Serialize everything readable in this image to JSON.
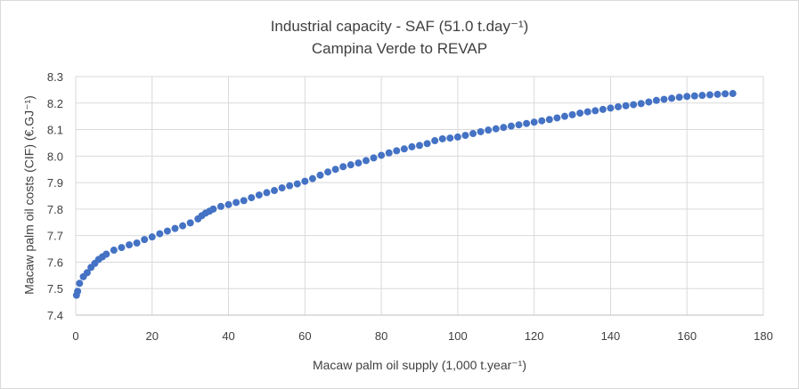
{
  "chart_data": {
    "type": "scatter",
    "title": "Industrial capacity - SAF (51.0 t.day⁻¹)",
    "subtitle": "Campina Verde to REVAP",
    "xlabel": "Macaw palm oil supply (1,000 t.year⁻¹)",
    "ylabel": "Macaw palm oil costs (CIF) (€.GJ⁻¹)",
    "xlim": [
      0,
      180
    ],
    "ylim": [
      7.4,
      8.3
    ],
    "x_ticks": [
      "0",
      "20",
      "40",
      "60",
      "80",
      "100",
      "120",
      "140",
      "160",
      "180"
    ],
    "y_ticks": [
      "7.4",
      "7.5",
      "7.6",
      "7.7",
      "7.8",
      "7.9",
      "8.0",
      "8.1",
      "8.2",
      "8.3"
    ],
    "grid": true,
    "legend": "none",
    "marker_color": "#4472c4",
    "series": [
      {
        "x": [
          0.2,
          0.5,
          1,
          2,
          3,
          4,
          5,
          6,
          7,
          8,
          10,
          12,
          14,
          16,
          18,
          20,
          22,
          24,
          26,
          28,
          30,
          32,
          33,
          34,
          35,
          36,
          38,
          40,
          42,
          44,
          46,
          48,
          50,
          52,
          54,
          56,
          58,
          60,
          62,
          64,
          66,
          68,
          70,
          72,
          74,
          76,
          78,
          80,
          82,
          84,
          86,
          88,
          90,
          92,
          94,
          96,
          98,
          100,
          102,
          104,
          106,
          108,
          110,
          112,
          114,
          116,
          118,
          120,
          122,
          124,
          126,
          128,
          130,
          132,
          134,
          136,
          138,
          140,
          142,
          144,
          146,
          148,
          150,
          152,
          154,
          156,
          158,
          160,
          162,
          164,
          166,
          168,
          170,
          172
        ],
        "y": [
          7.475,
          7.49,
          7.52,
          7.545,
          7.56,
          7.58,
          7.595,
          7.61,
          7.62,
          7.63,
          7.645,
          7.655,
          7.665,
          7.672,
          7.685,
          7.695,
          7.707,
          7.717,
          7.727,
          7.737,
          7.748,
          7.763,
          7.775,
          7.785,
          7.792,
          7.8,
          7.81,
          7.817,
          7.825,
          7.832,
          7.843,
          7.853,
          7.862,
          7.87,
          7.88,
          7.888,
          7.895,
          7.905,
          7.915,
          7.928,
          7.94,
          7.95,
          7.96,
          7.967,
          7.974,
          7.983,
          7.993,
          8.003,
          8.012,
          8.02,
          8.027,
          8.035,
          8.04,
          8.047,
          8.058,
          8.065,
          8.068,
          8.072,
          8.078,
          8.085,
          8.092,
          8.098,
          8.103,
          8.108,
          8.113,
          8.118,
          8.123,
          8.128,
          8.133,
          8.138,
          8.144,
          8.15,
          8.156,
          8.162,
          8.167,
          8.171,
          8.176,
          8.181,
          8.186,
          8.19,
          8.194,
          8.198,
          8.204,
          8.21,
          8.214,
          8.218,
          8.222,
          8.225,
          8.227,
          8.229,
          8.231,
          8.233,
          8.235,
          8.236
        ]
      }
    ]
  }
}
